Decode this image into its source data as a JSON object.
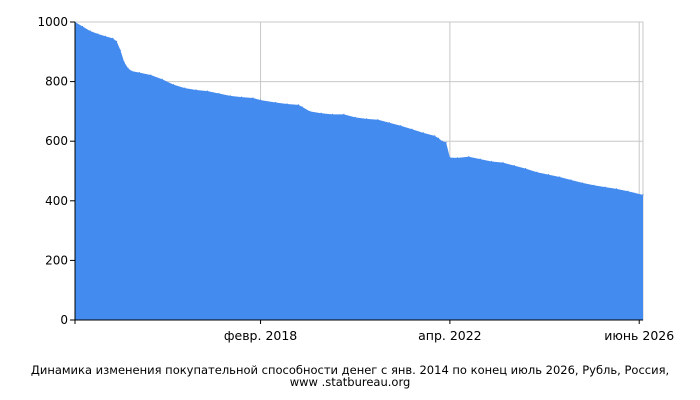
{
  "caption": {
    "text": "Динамика изменения покупательной способности денег с янв. 2014 по конец июль 2026, Рубль, Россия, www .statbureau.org"
  },
  "chart_data": {
    "type": "area",
    "title": "",
    "xlabel": "",
    "ylabel": "",
    "xlim": [
      "2014-01",
      "2026-07"
    ],
    "ylim": [
      0,
      1000
    ],
    "y_ticks": [
      0,
      200,
      400,
      600,
      800,
      1000
    ],
    "x_ticks": [
      {
        "date": "2018-02",
        "label": "февр. 2018"
      },
      {
        "date": "2022-04",
        "label": "апр. 2022"
      },
      {
        "date": "2026-06",
        "label": "июнь 2026"
      }
    ],
    "grid": true,
    "colors": {
      "fill": "#448bf0",
      "grid": "#c8c8c8",
      "axis": "#000000",
      "text": "#000000"
    },
    "series": [
      {
        "x": [
          "2014-01",
          "2014-03",
          "2014-05",
          "2014-07",
          "2014-09",
          "2014-11",
          "2014-12",
          "2015-01",
          "2015-02",
          "2015-03",
          "2015-04",
          "2015-06",
          "2015-09",
          "2015-12",
          "2016-03",
          "2016-06",
          "2016-09",
          "2016-12",
          "2017-03",
          "2017-06",
          "2017-09",
          "2017-12",
          "2018-02",
          "2018-06",
          "2018-09",
          "2018-12",
          "2019-01",
          "2019-03",
          "2019-06",
          "2019-09",
          "2019-12",
          "2020-03",
          "2020-06",
          "2020-09",
          "2020-12",
          "2021-03",
          "2021-06",
          "2021-09",
          "2021-12",
          "2022-01",
          "2022-02",
          "2022-03",
          "2022-04",
          "2022-06",
          "2022-09",
          "2022-12",
          "2023-03",
          "2023-06",
          "2023-09",
          "2023-12",
          "2024-03",
          "2024-06",
          "2024-09",
          "2024-12",
          "2025-03",
          "2025-06",
          "2025-09",
          "2025-12",
          "2026-03",
          "2026-07"
        ],
        "values": [
          1000,
          985,
          970,
          960,
          952,
          945,
          935,
          905,
          865,
          845,
          835,
          830,
          822,
          808,
          790,
          778,
          772,
          768,
          760,
          752,
          748,
          745,
          738,
          730,
          725,
          722,
          715,
          700,
          694,
          690,
          690,
          680,
          675,
          672,
          662,
          652,
          640,
          628,
          618,
          610,
          600,
          596,
          545,
          544,
          548,
          540,
          532,
          528,
          518,
          508,
          496,
          488,
          480,
          470,
          460,
          452,
          446,
          440,
          432,
          420
        ]
      }
    ]
  }
}
